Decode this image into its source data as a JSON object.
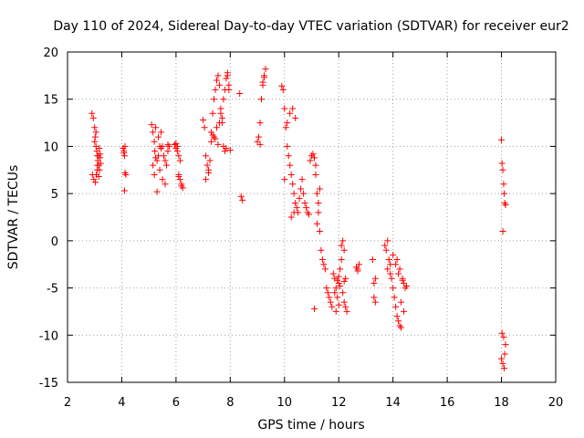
{
  "chart_data": {
    "type": "scatter",
    "title": "Day 110 of 2024, Sidereal Day-to-day VTEC variation (SDTVAR) for receiver eur2",
    "xlabel": "GPS time / hours",
    "ylabel": "SDTVAR / TECUs",
    "xlim": [
      2,
      20
    ],
    "ylim": [
      -15,
      20
    ],
    "xticks": [
      2,
      4,
      6,
      8,
      10,
      12,
      14,
      16,
      18,
      20
    ],
    "yticks": [
      -15,
      -10,
      -5,
      0,
      5,
      10,
      15,
      20
    ],
    "xtick_labels": [
      "2",
      "4",
      "6",
      "8",
      "10",
      "12",
      "14",
      "16",
      "18",
      "20"
    ],
    "ytick_labels": [
      "-15",
      "-10",
      "-5",
      "0",
      "5",
      "10",
      "15",
      "20"
    ],
    "grid": true,
    "marker": "+",
    "color": "#ff0000",
    "series": [
      {
        "name": "SDTVAR",
        "x": [
          2.9,
          2.95,
          3.0,
          3.02,
          3.05,
          3.08,
          3.1,
          3.12,
          3.15,
          3.18,
          3.2,
          2.92,
          2.97,
          3.03,
          3.06,
          3.1,
          3.14,
          3.17,
          3.2,
          3.22,
          3.0,
          3.05,
          3.1,
          3.15,
          4.05,
          4.08,
          4.1,
          4.12,
          4.15,
          4.1,
          4.12,
          4.08,
          5.1,
          5.15,
          5.2,
          5.22,
          5.25,
          5.3,
          5.35,
          5.4,
          5.45,
          5.5,
          5.55,
          5.6,
          5.65,
          5.7,
          5.75,
          5.3,
          5.2,
          5.4,
          5.5,
          5.6,
          5.7,
          5.15,
          5.25,
          5.35,
          5.45,
          5.95,
          6.0,
          6.05,
          6.1,
          6.15,
          6.2,
          6.05,
          6.1,
          6.15,
          6.2,
          6.25,
          6.0,
          6.1,
          7.0,
          7.05,
          7.1,
          7.15,
          7.2,
          7.25,
          7.3,
          7.35,
          7.4,
          7.45,
          7.5,
          7.55,
          7.6,
          7.65,
          7.7,
          7.75,
          7.8,
          7.85,
          7.9,
          7.95,
          8.0,
          7.1,
          7.2,
          7.3,
          7.4,
          7.5,
          7.6,
          7.7,
          7.8,
          7.9,
          7.35,
          7.45,
          7.55,
          7.65,
          7.75,
          7.85,
          7.95,
          8.35,
          8.4,
          8.45,
          9.0,
          9.05,
          9.1,
          9.15,
          9.2,
          9.25,
          9.3,
          9.1,
          9.2,
          9.25,
          9.9,
          9.95,
          10.0,
          10.05,
          10.1,
          10.15,
          10.2,
          10.25,
          10.3,
          10.35,
          10.4,
          10.45,
          10.5,
          10.55,
          10.6,
          10.65,
          10.7,
          10.75,
          10.8,
          10.85,
          10.9,
          10.0,
          10.1,
          10.2,
          10.3,
          10.4,
          10.25,
          10.35,
          10.95,
          11.0,
          11.05,
          11.1,
          11.15,
          11.2,
          11.25,
          11.3,
          11.35,
          11.4,
          11.45,
          11.5,
          11.55,
          11.6,
          11.65,
          11.7,
          11.75,
          11.1,
          11.2,
          11.3,
          11.15,
          11.25,
          11.8,
          11.85,
          11.9,
          11.95,
          12.0,
          12.05,
          12.1,
          12.15,
          12.2,
          12.25,
          12.3,
          11.9,
          12.0,
          12.1,
          12.2,
          11.95,
          12.05,
          12.15,
          12.25,
          11.85,
          12.0,
          12.2,
          12.65,
          12.7,
          12.75,
          12.7,
          13.25,
          13.3,
          13.35,
          13.3,
          13.35,
          13.7,
          13.75,
          13.8,
          13.85,
          13.9,
          13.95,
          14.0,
          14.05,
          14.1,
          14.15,
          14.2,
          14.25,
          14.3,
          14.35,
          14.4,
          14.45,
          14.5,
          13.8,
          13.9,
          14.0,
          14.1,
          14.2,
          14.3,
          14.4,
          14.15,
          14.25,
          14.35,
          18.0,
          18.02,
          18.05,
          18.08,
          18.1,
          18.12,
          18.15,
          18.0,
          18.05,
          18.1,
          18.15,
          18.02,
          18.08,
          18.12,
          18.05
        ],
        "y": [
          13.5,
          13.0,
          12.0,
          11.0,
          10.0,
          9.5,
          9.0,
          8.5,
          8.0,
          7.5,
          9.2,
          7.0,
          6.5,
          6.2,
          7.0,
          8.0,
          9.0,
          9.8,
          8.8,
          8.2,
          10.5,
          11.5,
          7.5,
          6.8,
          9.8,
          9.3,
          9.0,
          7.2,
          7.0,
          5.3,
          10.0,
          9.5,
          12.3,
          11.5,
          10.5,
          9.5,
          8.8,
          8.5,
          9.0,
          10.0,
          11.5,
          10.0,
          9.0,
          8.5,
          8.0,
          10.2,
          10.0,
          5.2,
          7.0,
          7.5,
          6.5,
          6.0,
          9.5,
          8.0,
          12.0,
          11.0,
          9.8,
          10.2,
          9.8,
          9.5,
          7.0,
          6.5,
          6.0,
          10.0,
          9.0,
          8.5,
          5.8,
          5.6,
          10.3,
          6.8,
          12.8,
          12.0,
          9.0,
          8.0,
          7.5,
          8.5,
          11.5,
          13.5,
          15.0,
          16.0,
          17.0,
          17.5,
          16.5,
          14.0,
          12.5,
          10.0,
          9.5,
          9.8,
          17.8,
          16.5,
          9.6,
          6.5,
          7.2,
          10.5,
          11.0,
          12.0,
          12.5,
          13.0,
          16.0,
          17.5,
          11.2,
          10.8,
          10.2,
          13.5,
          15.0,
          17.2,
          16.0,
          15.6,
          4.7,
          4.3,
          10.5,
          11.0,
          12.5,
          15.0,
          16.5,
          17.5,
          18.2,
          10.2,
          16.8,
          17.3,
          16.4,
          16.0,
          14.0,
          12.0,
          10.0,
          9.0,
          8.0,
          7.0,
          6.0,
          5.0,
          4.0,
          3.5,
          3.0,
          4.5,
          5.5,
          6.5,
          5.0,
          4.0,
          3.5,
          3.0,
          2.8,
          6.5,
          12.5,
          13.5,
          14.0,
          13.0,
          2.5,
          3.0,
          8.5,
          9.0,
          9.2,
          8.8,
          7.0,
          5.0,
          3.0,
          1.0,
          -1.0,
          -2.0,
          -2.5,
          -3.0,
          -5.0,
          -5.5,
          -6.0,
          -6.5,
          -7.0,
          -7.2,
          1.8,
          5.5,
          8.0,
          4.0,
          -3.5,
          -4.0,
          -5.0,
          -6.0,
          -4.5,
          -3.0,
          -2.0,
          -5.5,
          -6.5,
          -7.0,
          -7.5,
          -7.5,
          -3.8,
          -0.5,
          -1.0,
          -4.2,
          -4.8,
          0.0,
          -4.0,
          -5.5,
          -6.8,
          -4.3,
          -2.8,
          -3.2,
          -2.5,
          -3.0,
          -2.0,
          -4.5,
          -6.5,
          -6.0,
          -4.0,
          -0.5,
          -1.0,
          0.0,
          -2.0,
          -3.5,
          -4.0,
          -5.0,
          -6.0,
          -7.0,
          -8.0,
          -8.5,
          -9.0,
          -9.2,
          -4.0,
          -4.5,
          -5.0,
          -4.8,
          -3.0,
          -2.5,
          -1.5,
          -2.5,
          -3.5,
          -6.5,
          -7.5,
          -2.0,
          -3.0,
          -4.2,
          10.7,
          8.2,
          7.5,
          6.0,
          5.0,
          4.0,
          3.8,
          -12.5,
          -13.0,
          -13.5,
          -11.0,
          -9.8,
          -10.2,
          -12.0,
          1.0
        ]
      }
    ]
  }
}
